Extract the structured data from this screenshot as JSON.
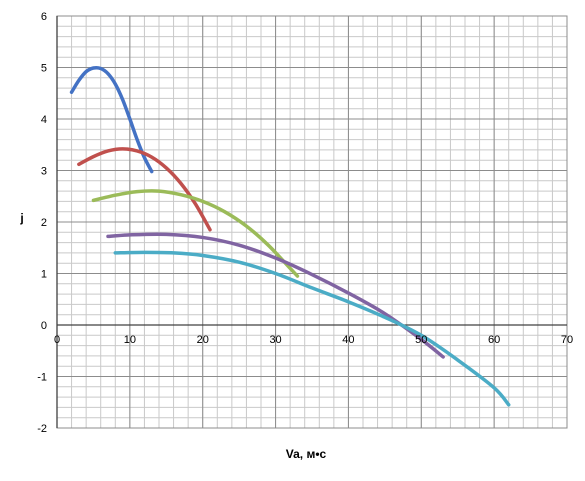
{
  "chart_data": {
    "type": "line",
    "xlabel": "Va, м•с",
    "ylabel": "j",
    "xlim": [
      0,
      70
    ],
    "ylim": [
      -2,
      6
    ],
    "x_ticks": [
      0,
      10,
      20,
      30,
      40,
      50,
      60,
      70
    ],
    "y_ticks": [
      -2,
      -1,
      0,
      1,
      2,
      3,
      4,
      5,
      6
    ],
    "grid": true,
    "minor_grid": true,
    "legend": "none",
    "series": [
      {
        "color": "#4472c4",
        "x": [
          2,
          3,
          4,
          5,
          6,
          7,
          8,
          9,
          10,
          11,
          12,
          13
        ],
        "y": [
          4.52,
          4.75,
          4.92,
          4.99,
          4.98,
          4.88,
          4.68,
          4.38,
          4.0,
          3.6,
          3.25,
          2.98
        ]
      },
      {
        "color": "#c0504d",
        "x": [
          3,
          5,
          7,
          9,
          11,
          13,
          15,
          17,
          19,
          21
        ],
        "y": [
          3.12,
          3.27,
          3.38,
          3.42,
          3.38,
          3.26,
          3.05,
          2.75,
          2.35,
          1.85
        ]
      },
      {
        "color": "#9bbb59",
        "x": [
          5,
          8,
          11,
          14,
          17,
          20,
          23,
          26,
          29,
          32,
          33
        ],
        "y": [
          2.42,
          2.52,
          2.59,
          2.6,
          2.53,
          2.4,
          2.2,
          1.92,
          1.55,
          1.1,
          0.95
        ]
      },
      {
        "color": "#8064a2",
        "x": [
          7,
          10,
          15,
          20,
          25,
          30,
          35,
          40,
          45,
          50,
          53
        ],
        "y": [
          1.72,
          1.75,
          1.76,
          1.7,
          1.55,
          1.3,
          0.98,
          0.62,
          0.22,
          -0.28,
          -0.62
        ]
      },
      {
        "color": "#4bacc6",
        "x": [
          8,
          12,
          16,
          20,
          25,
          30,
          35,
          40,
          45,
          50,
          55,
          60,
          62
        ],
        "y": [
          1.4,
          1.41,
          1.4,
          1.35,
          1.22,
          1.0,
          0.72,
          0.45,
          0.15,
          -0.2,
          -0.68,
          -1.22,
          -1.55
        ]
      }
    ]
  }
}
